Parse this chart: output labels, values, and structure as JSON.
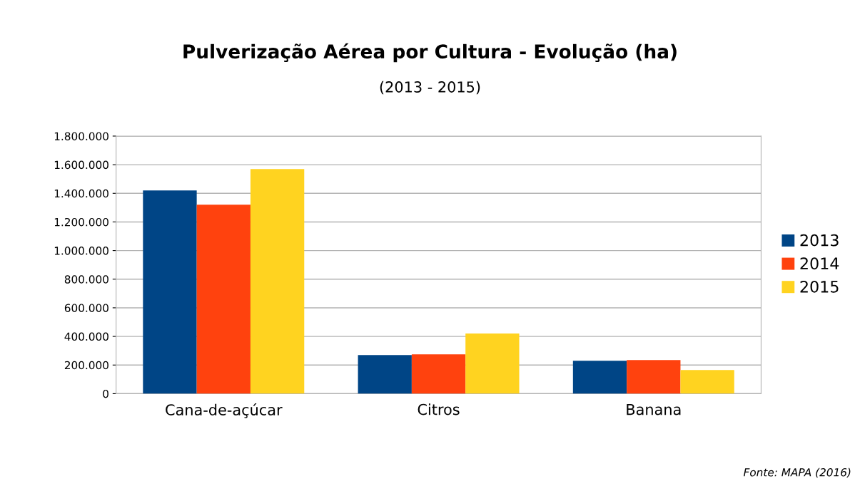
{
  "chart_data": {
    "type": "bar",
    "title": "Pulverização Aérea por Cultura - Evolução (ha)",
    "subtitle": "(2013 - 2015)",
    "categories": [
      "Cana-de-açúcar",
      "Citros",
      "Banana"
    ],
    "series": [
      {
        "name": "2013",
        "color": "#004586",
        "values": [
          1420000,
          270000,
          230000
        ]
      },
      {
        "name": "2014",
        "color": "#ff420e",
        "values": [
          1320000,
          275000,
          235000
        ]
      },
      {
        "name": "2015",
        "color": "#ffd320",
        "values": [
          1570000,
          420000,
          165000
        ]
      }
    ],
    "ylim": [
      0,
      1800000
    ],
    "yticks": [
      {
        "value": 0,
        "label": "0"
      },
      {
        "value": 200000,
        "label": "200.000"
      },
      {
        "value": 400000,
        "label": "400.000"
      },
      {
        "value": 600000,
        "label": "600.000"
      },
      {
        "value": 800000,
        "label": "800.000"
      },
      {
        "value": 1000000,
        "label": "1.000.000"
      },
      {
        "value": 1200000,
        "label": "1.200.000"
      },
      {
        "value": 1400000,
        "label": "1.400.000"
      },
      {
        "value": 1600000,
        "label": "1.600.000"
      },
      {
        "value": 1800000,
        "label": "1.800.000"
      }
    ],
    "grid": "y",
    "legend": "right",
    "annotations": [
      "Fonte: MAPA (2016)"
    ]
  }
}
